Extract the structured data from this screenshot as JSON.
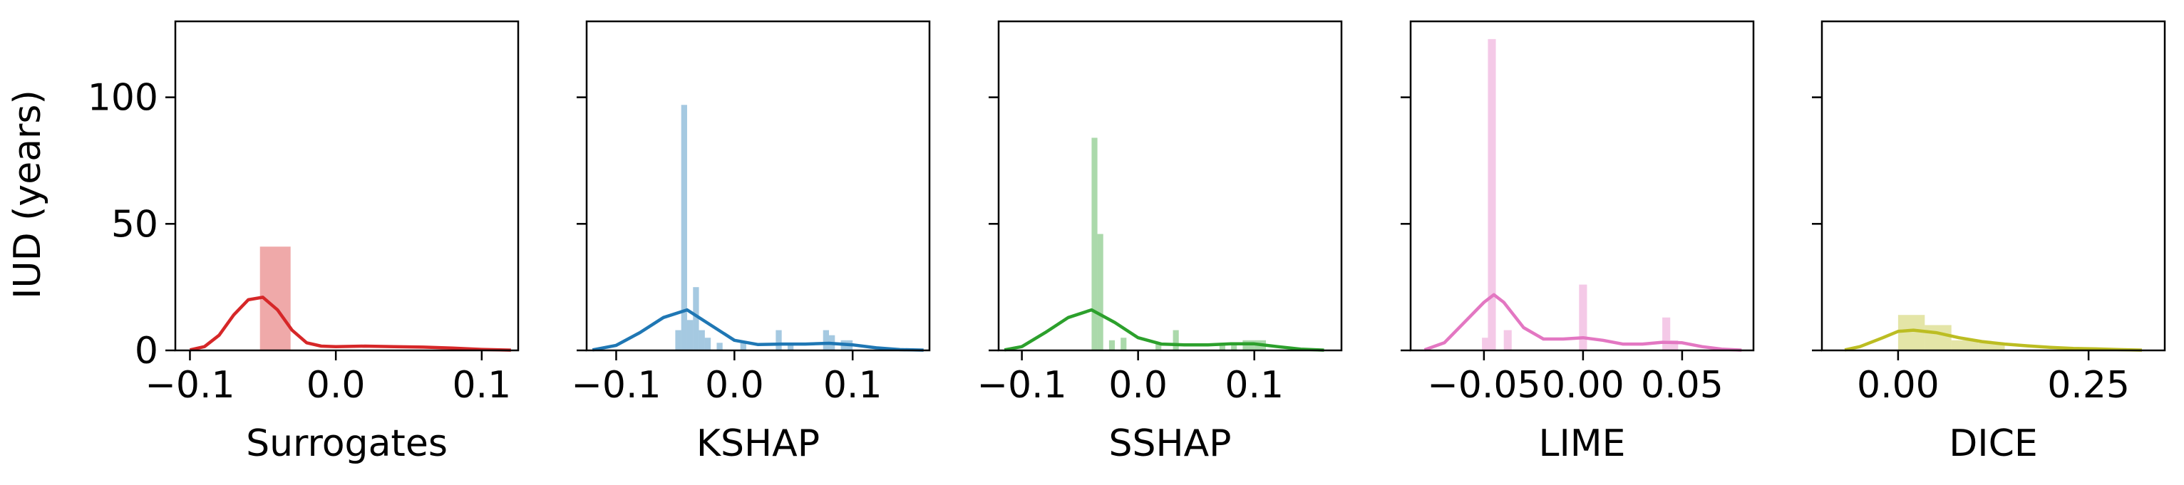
{
  "chart_data": {
    "type": "histogram-kde",
    "ylabel": "IUD (years)",
    "ylim": [
      0,
      130
    ],
    "yticks": [
      0,
      50,
      100
    ],
    "panels": [
      {
        "xlabel": "Surrogates",
        "color": "#d62728",
        "xlim": [
          -0.11,
          0.125
        ],
        "xticks": [
          -0.1,
          0.0,
          0.1
        ],
        "xtick_labels": [
          "−0.1",
          "0.0",
          "0.1"
        ],
        "bins": [
          [
            -0.052,
            -0.031,
            41
          ]
        ],
        "kde": [
          [
            -0.1,
            0.2
          ],
          [
            -0.09,
            1.5
          ],
          [
            -0.08,
            6
          ],
          [
            -0.07,
            14
          ],
          [
            -0.06,
            20
          ],
          [
            -0.05,
            21
          ],
          [
            -0.04,
            16
          ],
          [
            -0.03,
            8
          ],
          [
            -0.02,
            3
          ],
          [
            -0.01,
            1.7
          ],
          [
            0.0,
            1.5
          ],
          [
            0.02,
            1.7
          ],
          [
            0.04,
            1.5
          ],
          [
            0.06,
            1.3
          ],
          [
            0.08,
            0.9
          ],
          [
            0.1,
            0.4
          ],
          [
            0.12,
            0.1
          ]
        ]
      },
      {
        "xlabel": "KSHAP",
        "color": "#1f77b4",
        "xlim": [
          -0.125,
          0.165
        ],
        "xticks": [
          -0.1,
          0.0,
          0.1
        ],
        "xtick_labels": [
          "−0.1",
          "0.0",
          "0.1"
        ],
        "bins": [
          [
            -0.05,
            -0.045,
            8
          ],
          [
            -0.045,
            -0.04,
            97
          ],
          [
            -0.04,
            -0.035,
            12
          ],
          [
            -0.035,
            -0.03,
            25
          ],
          [
            -0.03,
            -0.025,
            8
          ],
          [
            -0.025,
            -0.02,
            5
          ],
          [
            -0.015,
            -0.01,
            3
          ],
          [
            0.005,
            0.01,
            3
          ],
          [
            0.035,
            0.04,
            8
          ],
          [
            0.045,
            0.05,
            3
          ],
          [
            0.075,
            0.08,
            8
          ],
          [
            0.08,
            0.085,
            6
          ],
          [
            0.09,
            0.095,
            4
          ],
          [
            0.095,
            0.1,
            4
          ]
        ],
        "kde": [
          [
            -0.12,
            0.2
          ],
          [
            -0.1,
            2
          ],
          [
            -0.08,
            7
          ],
          [
            -0.06,
            13
          ],
          [
            -0.04,
            16
          ],
          [
            -0.02,
            10
          ],
          [
            0.0,
            4
          ],
          [
            0.02,
            2.3
          ],
          [
            0.04,
            2.5
          ],
          [
            0.06,
            2.5
          ],
          [
            0.08,
            2.8
          ],
          [
            0.1,
            2.2
          ],
          [
            0.12,
            1
          ],
          [
            0.14,
            0.3
          ],
          [
            0.16,
            0.1
          ]
        ]
      },
      {
        "xlabel": "SSHAP",
        "color": "#2ca02c",
        "xlim": [
          -0.12,
          0.175
        ],
        "xticks": [
          -0.1,
          0.0,
          0.1
        ],
        "xtick_labels": [
          "−0.1",
          "0.0",
          "0.1"
        ],
        "bins": [
          [
            -0.04,
            -0.035,
            84
          ],
          [
            -0.035,
            -0.03,
            46
          ],
          [
            -0.025,
            -0.02,
            4
          ],
          [
            -0.015,
            -0.01,
            5
          ],
          [
            0.015,
            0.02,
            3
          ],
          [
            0.03,
            0.035,
            8
          ],
          [
            0.07,
            0.075,
            3
          ],
          [
            0.08,
            0.085,
            3
          ],
          [
            0.09,
            0.095,
            4
          ],
          [
            0.095,
            0.1,
            4
          ],
          [
            0.1,
            0.11,
            4
          ]
        ],
        "kde": [
          [
            -0.115,
            0.2
          ],
          [
            -0.1,
            1.5
          ],
          [
            -0.08,
            7
          ],
          [
            -0.06,
            13
          ],
          [
            -0.04,
            16
          ],
          [
            -0.02,
            11
          ],
          [
            0.0,
            5
          ],
          [
            0.02,
            2.5
          ],
          [
            0.04,
            2.2
          ],
          [
            0.06,
            2.2
          ],
          [
            0.08,
            2.6
          ],
          [
            0.1,
            2.6
          ],
          [
            0.12,
            1.5
          ],
          [
            0.14,
            0.5
          ],
          [
            0.16,
            0.1
          ]
        ]
      },
      {
        "xlabel": "LIME",
        "color": "#e377c2",
        "xlim": [
          -0.087,
          0.086
        ],
        "xticks": [
          -0.05,
          0.0,
          0.05
        ],
        "xtick_labels": [
          "−0.05",
          "0.00",
          "0.05"
        ],
        "bins": [
          [
            -0.051,
            -0.048,
            5
          ],
          [
            -0.048,
            -0.044,
            123
          ],
          [
            -0.04,
            -0.036,
            8
          ],
          [
            -0.002,
            0.002,
            26
          ],
          [
            0.04,
            0.044,
            13
          ],
          [
            0.044,
            0.048,
            4
          ]
        ],
        "kde": [
          [
            -0.08,
            0.2
          ],
          [
            -0.07,
            3
          ],
          [
            -0.06,
            11
          ],
          [
            -0.05,
            19
          ],
          [
            -0.045,
            22
          ],
          [
            -0.04,
            19
          ],
          [
            -0.03,
            9
          ],
          [
            -0.02,
            4.5
          ],
          [
            -0.01,
            4.5
          ],
          [
            0.0,
            5
          ],
          [
            0.01,
            4
          ],
          [
            0.02,
            2.5
          ],
          [
            0.03,
            2.5
          ],
          [
            0.04,
            3.2
          ],
          [
            0.05,
            3
          ],
          [
            0.06,
            1.5
          ],
          [
            0.07,
            0.5
          ],
          [
            0.08,
            0.1
          ]
        ]
      },
      {
        "xlabel": "DICE",
        "color": "#bcbd22",
        "xlim": [
          -0.1,
          0.35
        ],
        "xticks": [
          0.0,
          0.25
        ],
        "xtick_labels": [
          "0.00",
          "0.25"
        ],
        "bins": [
          [
            0.0,
            0.035,
            14
          ],
          [
            0.035,
            0.07,
            10
          ],
          [
            0.07,
            0.105,
            4
          ],
          [
            0.105,
            0.14,
            3
          ]
        ],
        "kde": [
          [
            -0.07,
            0.2
          ],
          [
            -0.05,
            1.5
          ],
          [
            -0.02,
            5
          ],
          [
            0.0,
            7.5
          ],
          [
            0.02,
            8
          ],
          [
            0.05,
            7
          ],
          [
            0.08,
            5
          ],
          [
            0.11,
            3.5
          ],
          [
            0.14,
            2.5
          ],
          [
            0.17,
            1.8
          ],
          [
            0.2,
            1.2
          ],
          [
            0.23,
            0.8
          ],
          [
            0.26,
            0.6
          ],
          [
            0.29,
            0.3
          ],
          [
            0.32,
            0.1
          ]
        ]
      }
    ]
  }
}
